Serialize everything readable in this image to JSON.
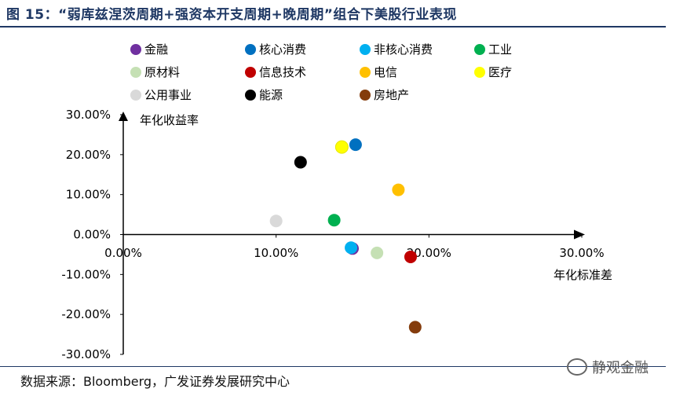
{
  "title": "图 15：“弱库兹涅茨周期+强资本开支周期+晚周期”组合下美股行业表现",
  "source": "数据来源：Bloomberg，广发证券发展研究中心",
  "watermark": "静观金融",
  "chart_data": {
    "type": "scatter",
    "xlabel": "年化标准差",
    "ylabel": "年化收益率",
    "xlim": [
      0,
      30
    ],
    "ylim": [
      -30,
      30
    ],
    "x_ticks": [
      "0.00%",
      "10.00%",
      "20.00%",
      "30.00%"
    ],
    "y_ticks": [
      "30.00%",
      "20.00%",
      "10.00%",
      "0.00%",
      "-10.00%",
      "-20.00%",
      "-30.00%"
    ],
    "legend_position": "top",
    "series": [
      {
        "name": "金融",
        "color": "#7030a0",
        "x": 15.0,
        "y": -3.5
      },
      {
        "name": "核心消费",
        "color": "#0070c0",
        "x": 15.2,
        "y": 22.5
      },
      {
        "name": "非核心消费",
        "color": "#00b0f0",
        "x": 14.9,
        "y": -3.3
      },
      {
        "name": "工业",
        "color": "#00b050",
        "x": 13.8,
        "y": 3.6
      },
      {
        "name": "原材料",
        "color": "#c5e0b4",
        "x": 16.6,
        "y": -4.6
      },
      {
        "name": "信息技术",
        "color": "#c00000",
        "x": 18.8,
        "y": -5.6
      },
      {
        "name": "电信",
        "color": "#ffc000",
        "x": 18.0,
        "y": 11.2
      },
      {
        "name": "医疗",
        "color": "#ffff00",
        "x": 14.3,
        "y": 21.9
      },
      {
        "name": "公用事业",
        "color": "#d9d9d9",
        "x": 10.0,
        "y": 3.4
      },
      {
        "name": "能源",
        "color": "#000000",
        "x": 11.6,
        "y": 18.1
      },
      {
        "name": "房地产",
        "color": "#843c0c",
        "x": 19.1,
        "y": -23.2
      }
    ]
  }
}
